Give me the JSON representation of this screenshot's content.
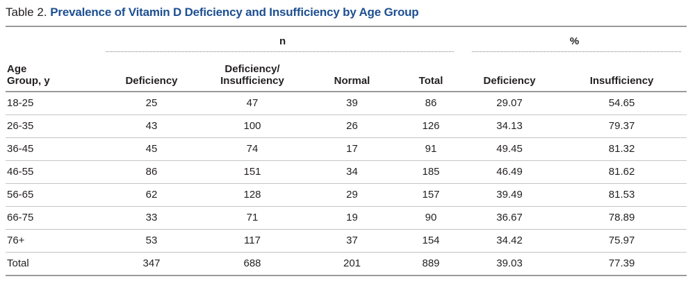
{
  "caption": {
    "label": "Table 2.",
    "title": "Prevalence of Vitamin D Deficiency and Insufficiency by Age Group"
  },
  "header": {
    "group_n": "n",
    "group_pct": "%",
    "columns": [
      [
        "Age",
        "Group, y"
      ],
      [
        "Deficiency"
      ],
      [
        "Deficiency/",
        "Insufficiency"
      ],
      [
        "Normal"
      ],
      [
        "Total"
      ],
      [
        "Deficiency"
      ],
      [
        "Insufficiency"
      ]
    ]
  },
  "rows": [
    [
      "18-25",
      "25",
      "47",
      "39",
      "86",
      "29.07",
      "54.65"
    ],
    [
      "26-35",
      "43",
      "100",
      "26",
      "126",
      "34.13",
      "79.37"
    ],
    [
      "36-45",
      "45",
      "74",
      "17",
      "91",
      "49.45",
      "81.32"
    ],
    [
      "46-55",
      "86",
      "151",
      "34",
      "185",
      "46.49",
      "81.62"
    ],
    [
      "56-65",
      "62",
      "128",
      "29",
      "157",
      "39.49",
      "81.53"
    ],
    [
      "66-75",
      "33",
      "71",
      "19",
      "90",
      "36.67",
      "78.89"
    ],
    [
      "76+",
      "53",
      "117",
      "37",
      "154",
      "34.42",
      "75.97"
    ],
    [
      "Total",
      "347",
      "688",
      "201",
      "889",
      "39.03",
      "77.39"
    ]
  ]
}
